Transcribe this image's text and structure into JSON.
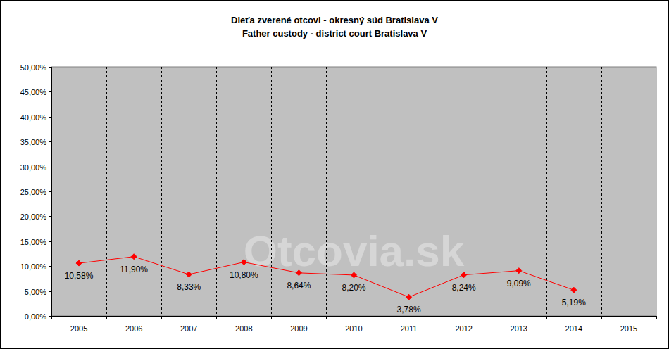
{
  "chart_data": {
    "type": "line",
    "title": "Dieťa zverené otcovi - okresný súd Bratislava V",
    "subtitle": "Father custody - district court Bratislava V",
    "annotations": [
      "Otcovia.sk"
    ],
    "categories": [
      "2005",
      "2006",
      "2007",
      "2008",
      "2009",
      "2010",
      "2011",
      "2012",
      "2013",
      "2014",
      "2015"
    ],
    "values": [
      10.58,
      11.9,
      8.33,
      10.8,
      8.64,
      8.2,
      3.78,
      8.24,
      9.09,
      5.19,
      null
    ],
    "value_labels": [
      "10,58%",
      "11,90%",
      "8,33%",
      "10,80%",
      "8,64%",
      "8,20%",
      "3,78%",
      "8,24%",
      "9,09%",
      "5,19%",
      null
    ],
    "color": "#ff0000",
    "marker": "diamond",
    "line_style": "solid",
    "ylim": [
      0,
      50
    ],
    "yticks": [
      {
        "value": 0,
        "label": "0,00%"
      },
      {
        "value": 5,
        "label": "5,00%"
      },
      {
        "value": 10,
        "label": "10,00%"
      },
      {
        "value": 15,
        "label": "15,00%"
      },
      {
        "value": 20,
        "label": "20,00%"
      },
      {
        "value": 25,
        "label": "25,00%"
      },
      {
        "value": 30,
        "label": "30,00%"
      },
      {
        "value": 35,
        "label": "35,00%"
      },
      {
        "value": 40,
        "label": "40,00%"
      },
      {
        "value": 45,
        "label": "45,00%"
      },
      {
        "value": 50,
        "label": "50,00%"
      }
    ],
    "grid": true,
    "data_labels": true
  }
}
